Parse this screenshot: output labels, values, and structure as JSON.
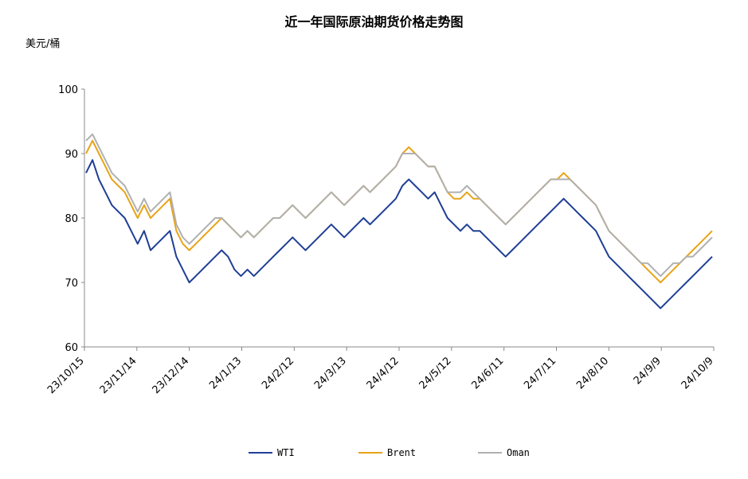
{
  "chart_data": {
    "type": "line",
    "title": "近一年国际原油期货价格走势图",
    "ylabel": "美元/桶",
    "ylim": [
      60,
      100
    ],
    "yticks": [
      60,
      70,
      80,
      90,
      100
    ],
    "x_tick_labels": [
      "23/10/15",
      "23/11/14",
      "23/12/14",
      "24/1/13",
      "24/2/12",
      "24/3/13",
      "24/4/12",
      "24/5/12",
      "24/6/11",
      "24/7/11",
      "24/8/10",
      "24/9/9",
      "24/10/9"
    ],
    "grid": false,
    "legend_position": "bottom",
    "series": [
      {
        "name": "WTI",
        "color": "#1f3f95",
        "values": [
          87,
          89,
          86,
          84,
          82,
          81,
          80,
          78,
          76,
          78,
          75,
          76,
          77,
          78,
          74,
          72,
          70,
          71,
          72,
          73,
          74,
          75,
          74,
          72,
          71,
          72,
          71,
          72,
          73,
          74,
          75,
          76,
          77,
          76,
          75,
          76,
          77,
          78,
          79,
          78,
          77,
          78,
          79,
          80,
          79,
          80,
          81,
          82,
          83,
          85,
          86,
          85,
          84,
          83,
          84,
          82,
          80,
          79,
          78,
          79,
          78,
          78,
          77,
          76,
          75,
          74,
          75,
          76,
          77,
          78,
          79,
          80,
          81,
          82,
          83,
          82,
          81,
          80,
          79,
          78,
          76,
          74,
          73,
          72,
          71,
          70,
          69,
          68,
          67,
          66,
          67,
          68,
          69,
          70,
          71,
          72,
          73,
          74
        ]
      },
      {
        "name": "Brent",
        "color": "#e8a317",
        "values": [
          90,
          92,
          90,
          88,
          86,
          85,
          84,
          82,
          80,
          82,
          80,
          81,
          82,
          83,
          78,
          76,
          75,
          76,
          77,
          78,
          79,
          80,
          79,
          78,
          77,
          78,
          77,
          78,
          79,
          80,
          80,
          81,
          82,
          81,
          80,
          81,
          82,
          83,
          84,
          83,
          82,
          83,
          84,
          85,
          84,
          85,
          86,
          87,
          88,
          90,
          91,
          90,
          89,
          88,
          88,
          86,
          84,
          83,
          83,
          84,
          83,
          83,
          82,
          81,
          80,
          79,
          80,
          81,
          82,
          83,
          84,
          85,
          86,
          86,
          87,
          86,
          85,
          84,
          83,
          82,
          80,
          78,
          77,
          76,
          75,
          74,
          73,
          72,
          71,
          70,
          71,
          72,
          73,
          74,
          75,
          76,
          77,
          78
        ]
      },
      {
        "name": "Oman",
        "color": "#b0b0b0",
        "values": [
          92,
          93,
          91,
          89,
          87,
          86,
          85,
          83,
          81,
          83,
          81,
          82,
          83,
          84,
          79,
          77,
          76,
          77,
          78,
          79,
          80,
          80,
          79,
          78,
          77,
          78,
          77,
          78,
          79,
          80,
          80,
          81,
          82,
          81,
          80,
          81,
          82,
          83,
          84,
          83,
          82,
          83,
          84,
          85,
          84,
          85,
          86,
          87,
          88,
          90,
          90,
          90,
          89,
          88,
          88,
          86,
          84,
          84,
          84,
          85,
          84,
          83,
          82,
          81,
          80,
          79,
          80,
          81,
          82,
          83,
          84,
          85,
          86,
          86,
          86,
          86,
          85,
          84,
          83,
          82,
          80,
          78,
          77,
          76,
          75,
          74,
          73,
          73,
          72,
          71,
          72,
          73,
          73,
          74,
          74,
          75,
          76,
          77
        ]
      }
    ]
  }
}
